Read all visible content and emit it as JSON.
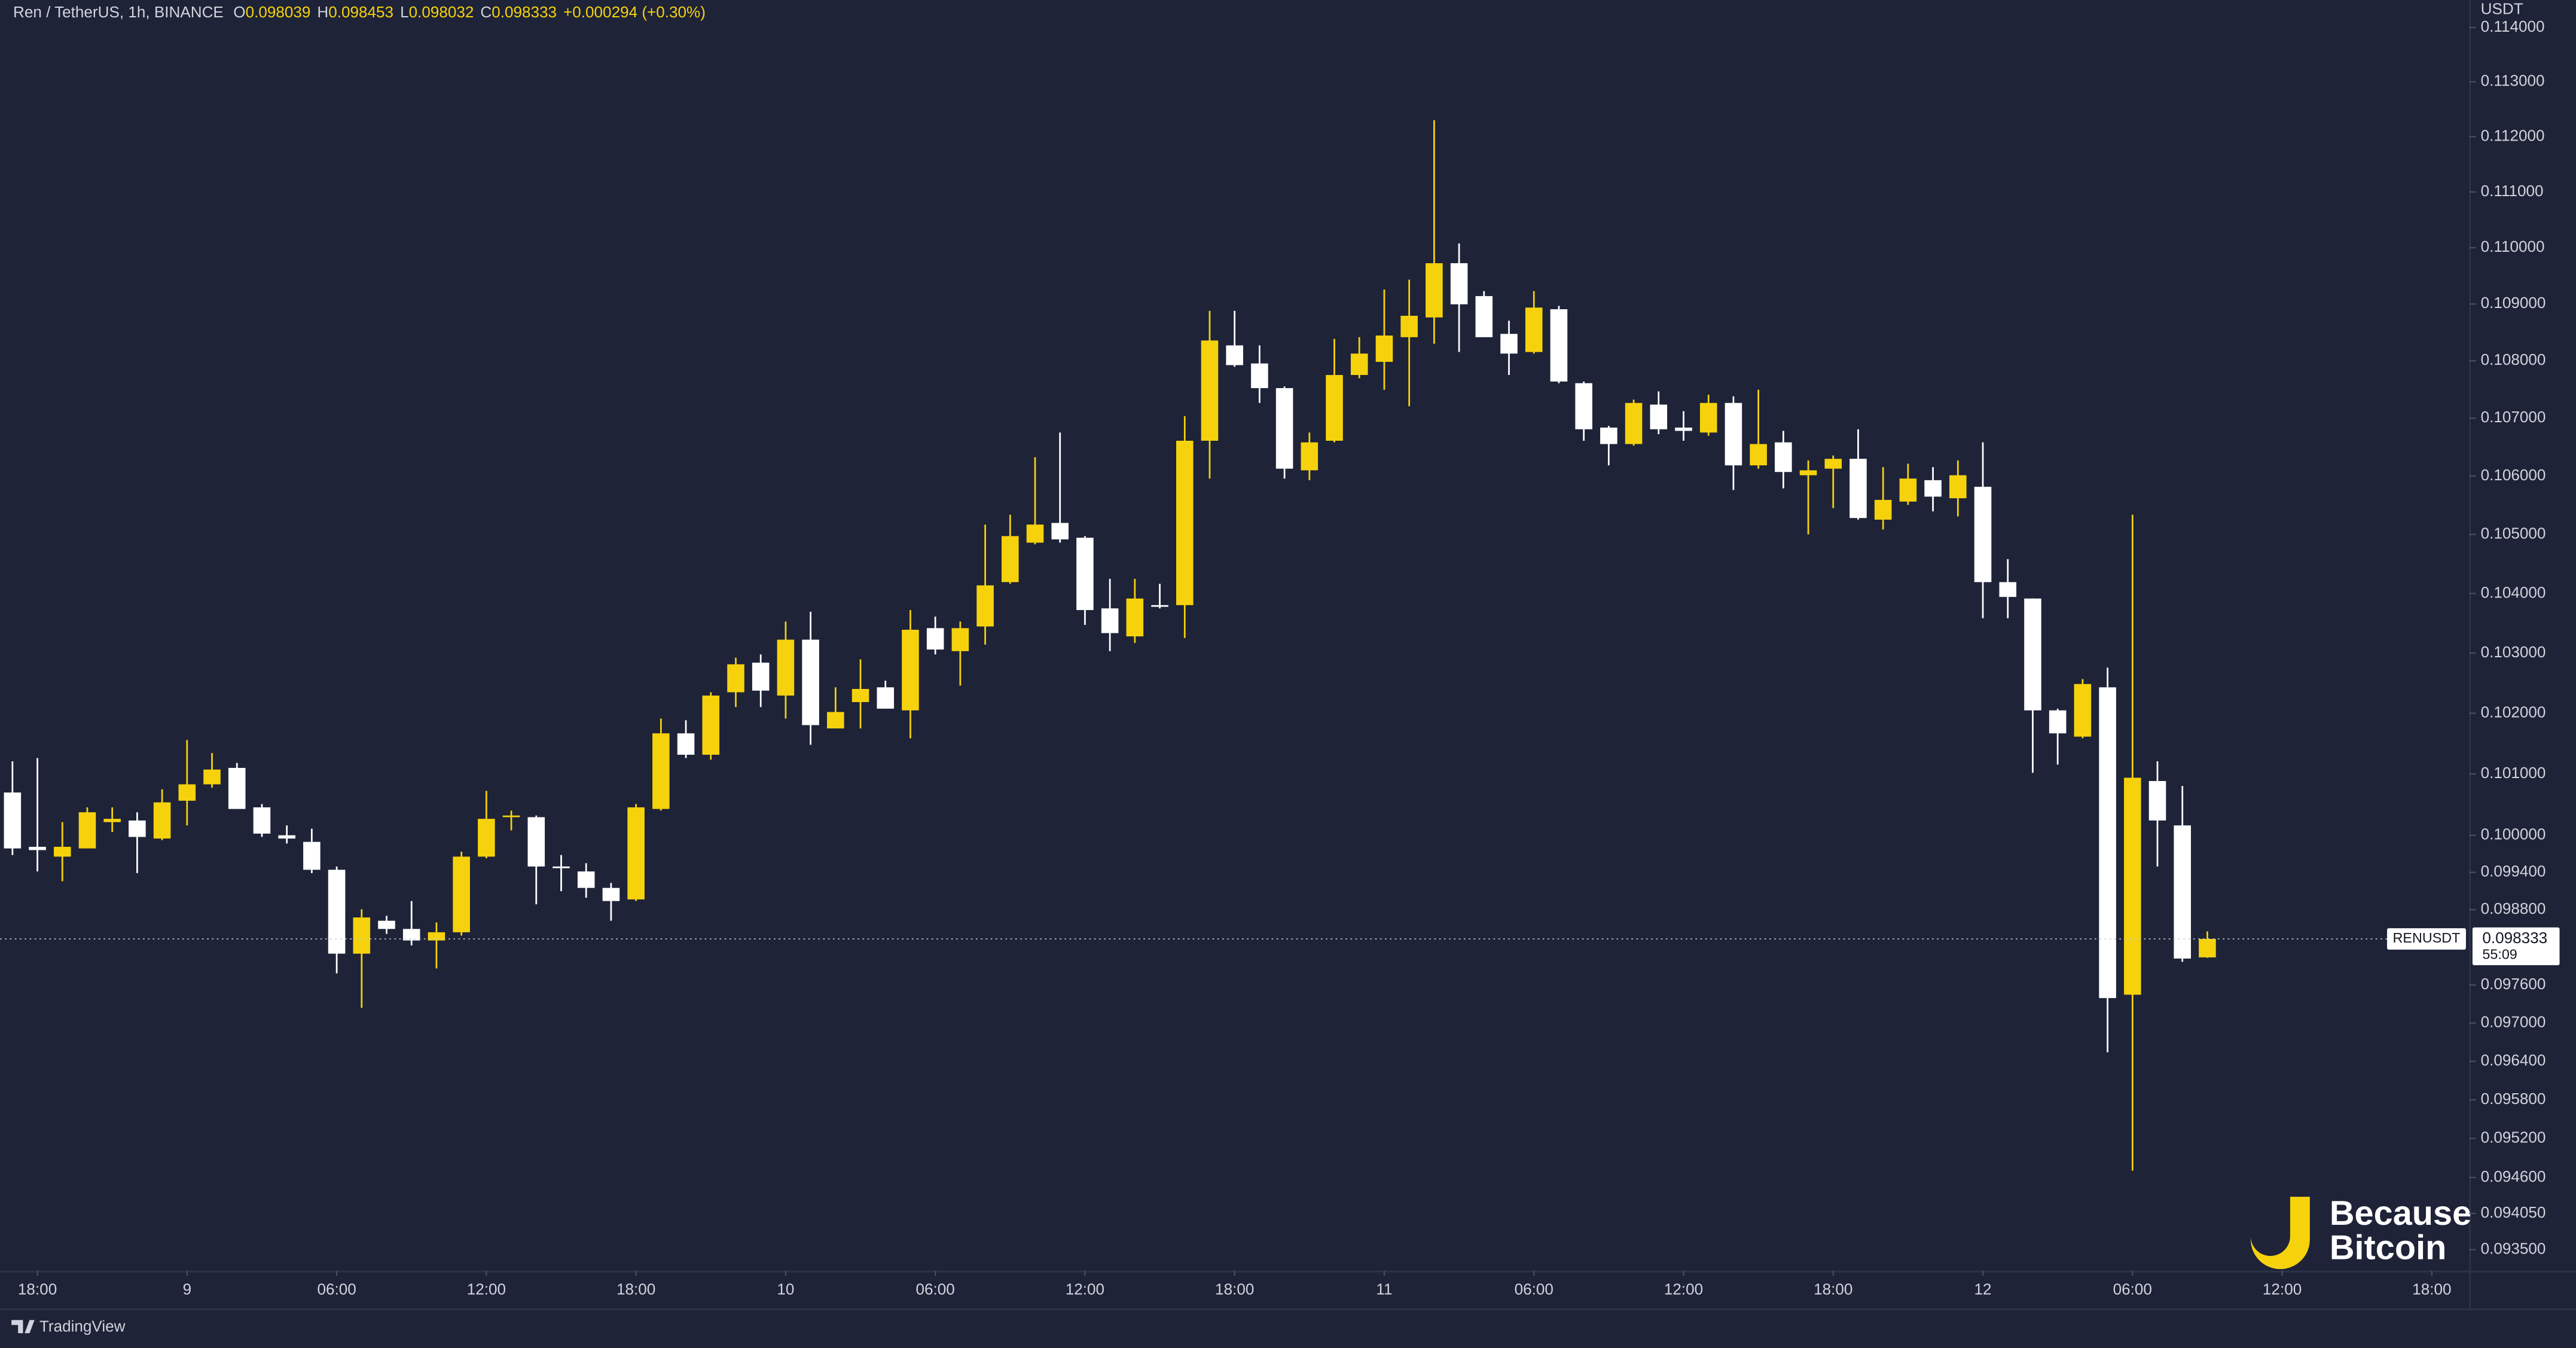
{
  "chart_data": {
    "type": "candlestick",
    "title": "Ren / TetherUS, 1h, BINANCE",
    "ohlc_labels": [
      "O",
      "H",
      "L",
      "C"
    ],
    "change": "+0.000294 (+0.30%)",
    "symbol": "RENUSDT",
    "countdown": "55:09",
    "y_unit": "USDT",
    "log_scale": true,
    "up_color": "#f5d20c",
    "down_color": "#ffffff",
    "price_line": true,
    "xlim": [
      -0.5,
      98.5
    ],
    "xticks": [
      {
        "value": 1,
        "label": "18:00"
      },
      {
        "value": 7,
        "label": "9"
      },
      {
        "value": 13,
        "label": "06:00"
      },
      {
        "value": 19,
        "label": "12:00"
      },
      {
        "value": 25,
        "label": "18:00"
      },
      {
        "value": 31,
        "label": "10"
      },
      {
        "value": 37,
        "label": "06:00"
      },
      {
        "value": 43,
        "label": "12:00"
      },
      {
        "value": 49,
        "label": "18:00"
      },
      {
        "value": 55,
        "label": "11"
      },
      {
        "value": 61,
        "label": "06:00"
      },
      {
        "value": 67,
        "label": "12:00"
      },
      {
        "value": 73,
        "label": "18:00"
      },
      {
        "value": 79,
        "label": "12"
      },
      {
        "value": 85,
        "label": "06:00"
      },
      {
        "value": 91,
        "label": "12:00"
      },
      {
        "value": 97,
        "label": "18:00"
      }
    ],
    "ylim": [
      0.09318,
      0.11451
    ],
    "yticks": [
      {
        "value": 0.114,
        "label": "0.114000"
      },
      {
        "value": 0.113,
        "label": "0.113000"
      },
      {
        "value": 0.112,
        "label": "0.112000"
      },
      {
        "value": 0.111,
        "label": "0.111000"
      },
      {
        "value": 0.11,
        "label": "0.110000"
      },
      {
        "value": 0.109,
        "label": "0.109000"
      },
      {
        "value": 0.108,
        "label": "0.108000"
      },
      {
        "value": 0.107,
        "label": "0.107000"
      },
      {
        "value": 0.106,
        "label": "0.106000"
      },
      {
        "value": 0.105,
        "label": "0.105000"
      },
      {
        "value": 0.104,
        "label": "0.104000"
      },
      {
        "value": 0.103,
        "label": "0.103000"
      },
      {
        "value": 0.102,
        "label": "0.102000"
      },
      {
        "value": 0.101,
        "label": "0.101000"
      },
      {
        "value": 0.1,
        "label": "0.100000"
      },
      {
        "value": 0.0994,
        "label": "0.099400"
      },
      {
        "value": 0.0988,
        "label": "0.098800"
      },
      {
        "value": 0.0976,
        "label": "0.097600"
      },
      {
        "value": 0.097,
        "label": "0.097000"
      },
      {
        "value": 0.0964,
        "label": "0.096400"
      },
      {
        "value": 0.0958,
        "label": "0.095800"
      },
      {
        "value": 0.0952,
        "label": "0.095200"
      },
      {
        "value": 0.0946,
        "label": "0.094600"
      },
      {
        "value": 0.09405,
        "label": "0.094050"
      },
      {
        "value": 0.0935,
        "label": "0.093500"
      }
    ],
    "open": [
      0.100696,
      0.099813,
      0.099654,
      0.099787,
      0.100214,
      0.10024,
      0.099947,
      0.100562,
      0.10083,
      0.101099,
      0.100454,
      0.1,
      0.099893,
      0.099442,
      0.098098,
      0.098623,
      0.098492,
      0.098308,
      0.098439,
      0.099654,
      0.100294,
      0.100294,
      0.099495,
      0.099415,
      0.09915,
      0.098965,
      0.100428,
      0.101667,
      0.101315,
      0.102347,
      0.10284,
      0.102292,
      0.103224,
      0.101748,
      0.102184,
      0.102429,
      0.102047,
      0.103417,
      0.103032,
      0.103445,
      0.104192,
      0.104861,
      0.105197,
      0.104945,
      0.103749,
      0.103279,
      0.103804,
      0.103804,
      0.106609,
      0.108271,
      0.107954,
      0.107523,
      0.106099,
      0.106609,
      0.107752,
      0.107982,
      0.108415,
      0.108763,
      0.109724,
      0.10914,
      0.108473,
      0.108155,
      0.108908,
      0.107609,
      0.106837,
      0.106552,
      0.107236,
      0.106837,
      0.106751,
      0.107265,
      0.106184,
      0.106581,
      0.106014,
      0.106127,
      0.106297,
      0.105253,
      0.105562,
      0.105929,
      0.105619,
      0.105816,
      0.104192,
      0.103915,
      0.102047,
      0.101613,
      0.102429,
      0.097447,
      0.100884,
      0.10016,
      0.098039
    ],
    "high": [
      0.101207,
      0.101261,
      0.100214,
      0.100454,
      0.100454,
      0.100374,
      0.100749,
      0.101559,
      0.101342,
      0.10118,
      0.100508,
      0.10016,
      0.100107,
      0.099495,
      0.098807,
      0.098702,
      0.098939,
      0.098597,
      0.099734,
      0.100723,
      0.100401,
      0.100321,
      0.09968,
      0.099548,
      0.09923,
      0.100508,
      0.101911,
      0.101884,
      0.102347,
      0.102922,
      0.102977,
      0.103528,
      0.103693,
      0.102429,
      0.102894,
      0.102538,
      0.103721,
      0.10361,
      0.103528,
      0.105169,
      0.105338,
      0.106325,
      0.106751,
      0.104973,
      0.104248,
      0.104248,
      0.104164,
      0.107036,
      0.108879,
      0.108879,
      0.108271,
      0.107551,
      0.106751,
      0.108386,
      0.108415,
      0.109257,
      0.109432,
      0.112299,
      0.110075,
      0.109228,
      0.108705,
      0.109228,
      0.108966,
      0.107638,
      0.106865,
      0.107322,
      0.107465,
      0.107122,
      0.107408,
      0.10738,
      0.107494,
      0.10678,
      0.106269,
      0.106354,
      0.106808,
      0.106155,
      0.106212,
      0.106155,
      0.106269,
      0.106581,
      0.104582,
      0.103915,
      0.102075,
      0.102566,
      0.102757,
      0.105338,
      0.101207,
      0.100803,
      0.098453
    ],
    "low": [
      0.09968,
      0.099415,
      0.099256,
      0.099787,
      0.100053,
      0.099389,
      0.09992,
      0.10016,
      0.100776,
      0.100428,
      0.099973,
      0.099867,
      0.099389,
      0.097785,
      0.097239,
      0.098413,
      0.098229,
      0.097863,
      0.098386,
      0.099627,
      0.10008,
      0.098886,
      0.099097,
      0.098992,
      0.098623,
      0.098939,
      0.100401,
      0.101261,
      0.101234,
      0.102102,
      0.102102,
      0.101911,
      0.101478,
      0.101748,
      0.101748,
      0.102075,
      0.101586,
      0.102977,
      0.102456,
      0.103142,
      0.104164,
      0.104833,
      0.104861,
      0.103472,
      0.103032,
      0.103169,
      0.103749,
      0.103252,
      0.105957,
      0.107896,
      0.107265,
      0.105957,
      0.105929,
      0.106581,
      0.107695,
      0.107494,
      0.107208,
      0.1083,
      0.108155,
      0.108415,
      0.107752,
      0.108127,
      0.107609,
      0.106609,
      0.106184,
      0.106524,
      0.106723,
      0.106609,
      0.106695,
      0.10576,
      0.106127,
      0.105788,
      0.105001,
      0.10545,
      0.105253,
      0.105085,
      0.105506,
      0.105394,
      0.105309,
      0.103583,
      0.103583,
      0.101018,
      0.101153,
      0.101586,
      0.096541,
      0.094705,
      0.099495,
      0.097968,
      0.098032
    ],
    "close": [
      0.099787,
      0.09976,
      0.099813,
      0.100374,
      0.100267,
      0.099973,
      0.100535,
      0.10083,
      0.101072,
      0.100428,
      0.100027,
      0.099947,
      0.099442,
      0.098098,
      0.098676,
      0.098492,
      0.098308,
      0.098439,
      0.099654,
      0.100267,
      0.100321,
      0.099495,
      0.099468,
      0.09915,
      0.098939,
      0.100454,
      0.101667,
      0.101315,
      0.102292,
      0.102812,
      0.102374,
      0.103224,
      0.101803,
      0.10202,
      0.102402,
      0.102075,
      0.10339,
      0.103059,
      0.103417,
      0.104137,
      0.104973,
      0.105169,
      0.104917,
      0.103721,
      0.103334,
      0.103915,
      0.103776,
      0.106609,
      0.108357,
      0.107925,
      0.107523,
      0.106127,
      0.106581,
      0.107752,
      0.108127,
      0.108444,
      0.108792,
      0.109724,
      0.108995,
      0.108415,
      0.108127,
      0.108937,
      0.107638,
      0.106808,
      0.106552,
      0.107265,
      0.106808,
      0.10678,
      0.107265,
      0.106184,
      0.106552,
      0.10607,
      0.106099,
      0.106297,
      0.105281,
      0.105591,
      0.105957,
      0.105647,
      0.106014,
      0.104192,
      0.103942,
      0.102047,
      0.101667,
      0.102484,
      0.097394,
      0.100938,
      0.10024,
      0.09802,
      0.098333
    ]
  },
  "watermark": {
    "line1": "Because",
    "line2": "Bitcoin"
  },
  "footer": "TradingView"
}
